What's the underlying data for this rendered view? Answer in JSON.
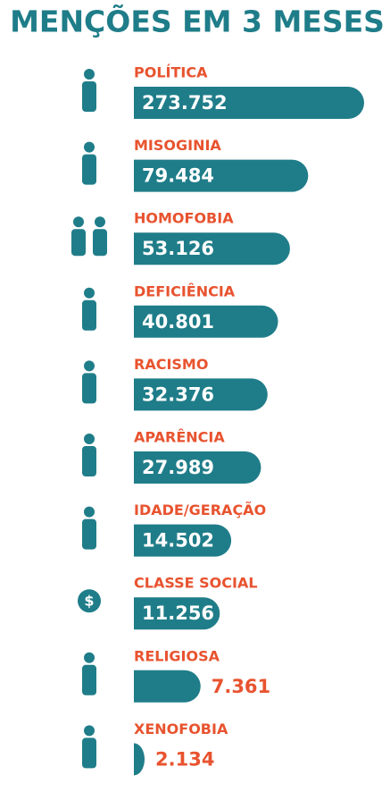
{
  "chart_data": {
    "type": "bar",
    "orientation": "horizontal",
    "log_scale": true,
    "title": "MENÇÕES EM 3 MESES",
    "categories": [
      "POLÍTICA",
      "MISOGINIA",
      "HOMOFOBIA",
      "DEFICIÊNCIA",
      "RACISMO",
      "APARÊNCIA",
      "IDADE/GERAÇÃO",
      "CLASSE SOCIAL",
      "RELIGIOSA",
      "XENOFOBIA"
    ],
    "values": [
      273752,
      79484,
      53126,
      40801,
      32376,
      27989,
      14502,
      11256,
      7361,
      2134
    ],
    "value_labels": [
      "273.752",
      "79.484",
      "53.126",
      "40.801",
      "32.376",
      "27.989",
      "14.502",
      "11.256",
      "7.361",
      "2.134"
    ],
    "color": "#1f7d89"
  }
}
